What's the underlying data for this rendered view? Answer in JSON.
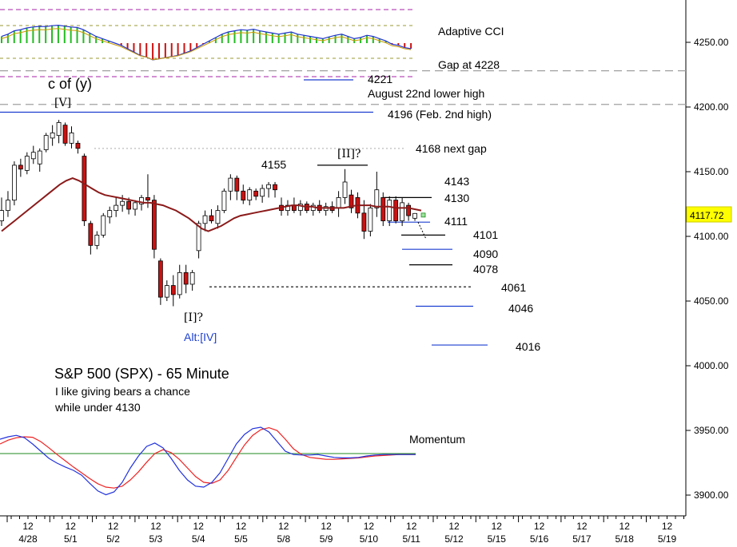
{
  "chart_data": {
    "type": "candlestick",
    "title": "S&P 500 (SPX) - 65 Minute",
    "subtitle_lines": [
      "I like giving bears a chance",
      "while under 4130"
    ],
    "y_axis": {
      "range": [
        3890,
        4290
      ],
      "ticks": [
        "4250.00",
        "4200.00",
        "4150.00",
        "4100.00",
        "4050.00",
        "4000.00",
        "3950.00",
        "3900.00"
      ],
      "tick_values": [
        4250,
        4200,
        4150,
        4100,
        4050,
        4000,
        3950,
        3900
      ],
      "last_price": "4117.72",
      "last_price_value": 4117.72,
      "last_price_color": "#ffff00"
    },
    "x_axis": {
      "top_labels": [
        "12",
        "12",
        "12",
        "12",
        "12",
        "12",
        "12",
        "12",
        "12",
        "12",
        "12",
        "12",
        "12",
        "12",
        "12",
        "12"
      ],
      "dates": [
        "4/28",
        "5/1",
        "5/2",
        "5/3",
        "5/4",
        "5/5",
        "5/8",
        "5/9",
        "5/10",
        "5/11",
        "5/12",
        "5/15",
        "5/16",
        "5/17",
        "5/18",
        "5/19"
      ]
    },
    "candles": [
      {
        "o": 4112,
        "h": 4130,
        "l": 4108,
        "c": 4120
      },
      {
        "o": 4120,
        "h": 4135,
        "l": 4115,
        "c": 4128
      },
      {
        "o": 4128,
        "h": 4158,
        "l": 4124,
        "c": 4155
      },
      {
        "o": 4155,
        "h": 4160,
        "l": 4146,
        "c": 4152
      },
      {
        "o": 4151,
        "h": 4165,
        "l": 4148,
        "c": 4162
      },
      {
        "o": 4160,
        "h": 4170,
        "l": 4156,
        "c": 4165
      },
      {
        "o": 4156,
        "h": 4168,
        "l": 4150,
        "c": 4166
      },
      {
        "o": 4167,
        "h": 4180,
        "l": 4165,
        "c": 4178
      },
      {
        "o": 4176,
        "h": 4186,
        "l": 4170,
        "c": 4180
      },
      {
        "o": 4178,
        "h": 4190,
        "l": 4172,
        "c": 4188
      },
      {
        "o": 4186,
        "h": 4188,
        "l": 4170,
        "c": 4172
      },
      {
        "o": 4172,
        "h": 4185,
        "l": 4168,
        "c": 4180
      },
      {
        "o": 4172,
        "h": 4174,
        "l": 4164,
        "c": 4168
      },
      {
        "o": 4162,
        "h": 4164,
        "l": 4108,
        "c": 4112
      },
      {
        "o": 4110,
        "h": 4112,
        "l": 4086,
        "c": 4093
      },
      {
        "o": 4093,
        "h": 4104,
        "l": 4090,
        "c": 4101
      },
      {
        "o": 4101,
        "h": 4118,
        "l": 4099,
        "c": 4116
      },
      {
        "o": 4115,
        "h": 4123,
        "l": 4110,
        "c": 4120
      },
      {
        "o": 4120,
        "h": 4130,
        "l": 4115,
        "c": 4124
      },
      {
        "o": 4124,
        "h": 4132,
        "l": 4119,
        "c": 4127
      },
      {
        "o": 4127,
        "h": 4130,
        "l": 4117,
        "c": 4121
      },
      {
        "o": 4121,
        "h": 4128,
        "l": 4116,
        "c": 4126
      },
      {
        "o": 4125,
        "h": 4132,
        "l": 4120,
        "c": 4130
      },
      {
        "o": 4130,
        "h": 4148,
        "l": 4122,
        "c": 4128
      },
      {
        "o": 4128,
        "h": 4132,
        "l": 4083,
        "c": 4090
      },
      {
        "o": 4081,
        "h": 4083,
        "l": 4047,
        "c": 4053
      },
      {
        "o": 4053,
        "h": 4066,
        "l": 4050,
        "c": 4062
      },
      {
        "o": 4062,
        "h": 4070,
        "l": 4046,
        "c": 4055
      },
      {
        "o": 4055,
        "h": 4078,
        "l": 4052,
        "c": 4072
      },
      {
        "o": 4072,
        "h": 4078,
        "l": 4056,
        "c": 4063
      },
      {
        "o": 4063,
        "h": 4074,
        "l": 4058,
        "c": 4072
      },
      {
        "o": 4089,
        "h": 4112,
        "l": 4083,
        "c": 4110
      },
      {
        "o": 4110,
        "h": 4120,
        "l": 4104,
        "c": 4116
      },
      {
        "o": 4116,
        "h": 4121,
        "l": 4110,
        "c": 4112
      },
      {
        "o": 4110,
        "h": 4124,
        "l": 4106,
        "c": 4120
      },
      {
        "o": 4120,
        "h": 4137,
        "l": 4118,
        "c": 4135
      },
      {
        "o": 4135,
        "h": 4148,
        "l": 4128,
        "c": 4145
      },
      {
        "o": 4145,
        "h": 4147,
        "l": 4128,
        "c": 4135
      },
      {
        "o": 4135,
        "h": 4140,
        "l": 4125,
        "c": 4128
      },
      {
        "o": 4128,
        "h": 4138,
        "l": 4124,
        "c": 4136
      },
      {
        "o": 4135,
        "h": 4137,
        "l": 4128,
        "c": 4131
      },
      {
        "o": 4131,
        "h": 4140,
        "l": 4126,
        "c": 4137
      },
      {
        "o": 4137,
        "h": 4142,
        "l": 4130,
        "c": 4140
      },
      {
        "o": 4140,
        "h": 4142,
        "l": 4130,
        "c": 4136
      },
      {
        "o": 4124,
        "h": 4130,
        "l": 4116,
        "c": 4120
      },
      {
        "o": 4120,
        "h": 4128,
        "l": 4116,
        "c": 4124
      },
      {
        "o": 4124,
        "h": 4130,
        "l": 4118,
        "c": 4120
      },
      {
        "o": 4120,
        "h": 4128,
        "l": 4116,
        "c": 4125
      },
      {
        "o": 4125,
        "h": 4127,
        "l": 4118,
        "c": 4120
      },
      {
        "o": 4120,
        "h": 4126,
        "l": 4116,
        "c": 4124
      },
      {
        "o": 4124,
        "h": 4128,
        "l": 4118,
        "c": 4120
      },
      {
        "o": 4120,
        "h": 4126,
        "l": 4116,
        "c": 4123
      },
      {
        "o": 4123,
        "h": 4127,
        "l": 4118,
        "c": 4120
      },
      {
        "o": 4122,
        "h": 4135,
        "l": 4115,
        "c": 4130
      },
      {
        "o": 4130,
        "h": 4152,
        "l": 4125,
        "c": 4142
      },
      {
        "o": 4132,
        "h": 4136,
        "l": 4118,
        "c": 4122
      },
      {
        "o": 4130,
        "h": 4134,
        "l": 4114,
        "c": 4118
      },
      {
        "o": 4118,
        "h": 4128,
        "l": 4098,
        "c": 4104
      },
      {
        "o": 4104,
        "h": 4125,
        "l": 4100,
        "c": 4122
      },
      {
        "o": 4122,
        "h": 4150,
        "l": 4115,
        "c": 4136
      },
      {
        "o": 4130,
        "h": 4134,
        "l": 4108,
        "c": 4112
      },
      {
        "o": 4112,
        "h": 4131,
        "l": 4108,
        "c": 4128
      },
      {
        "o": 4128,
        "h": 4131,
        "l": 4110,
        "c": 4112
      },
      {
        "o": 4112,
        "h": 4130,
        "l": 4108,
        "c": 4126
      },
      {
        "o": 4124,
        "h": 4126,
        "l": 4112,
        "c": 4116
      },
      {
        "o": 4114,
        "h": 4118,
        "l": 4112,
        "c": 4117.72
      }
    ],
    "moving_average_color": "#8b1a1a",
    "moving_average": [
      4104,
      4108,
      4112,
      4116,
      4120,
      4124,
      4128,
      4132,
      4136,
      4140,
      4143,
      4145,
      4143,
      4140,
      4137,
      4134,
      4132,
      4131,
      4130,
      4129,
      4128,
      4127,
      4126,
      4126,
      4125,
      4124,
      4122,
      4120,
      4117,
      4114,
      4110,
      4106,
      4104,
      4106,
      4108,
      4111,
      4114,
      4116,
      4117,
      4118,
      4119,
      4120,
      4121,
      4122,
      4123,
      4124,
      4124,
      4123,
      4123,
      4122,
      4122,
      4122,
      4122,
      4122,
      4123,
      4124,
      4124,
      4124,
      4123,
      4123,
      4123,
      4122,
      4122,
      4122,
      4121,
      4120
    ],
    "levels": [
      {
        "label": "4221",
        "value": 4221,
        "color": "#1c3fd1",
        "style": "solid",
        "x1": 380,
        "x2": 442
      },
      {
        "label": "August 22nd lower high",
        "value": 4212,
        "color": "#000000",
        "style": "none"
      },
      {
        "label": "4196 (Feb. 2nd high)",
        "value": 4196,
        "color": "#1c3fd1",
        "style": "solid",
        "x1": 0,
        "x2": 467
      },
      {
        "label": "4168 next gap",
        "value": 4168,
        "color": "#bbbbbb",
        "style": "dotted",
        "x1": 118,
        "x2": 505
      },
      {
        "label": "4143",
        "value": 4143,
        "color": "#000000",
        "style": "none"
      },
      {
        "label": "4130",
        "value": 4130,
        "color": "#000000",
        "style": "solid",
        "x1": 480,
        "x2": 540
      },
      {
        "label": "4111",
        "value": 4111,
        "color": "#1c3fd1",
        "style": "solid",
        "x1": 485,
        "x2": 538
      },
      {
        "label": "4101",
        "value": 4101,
        "color": "#000000",
        "style": "solid",
        "x1": 502,
        "x2": 557
      },
      {
        "label": "4090",
        "value": 4090,
        "color": "#1c3fd1",
        "style": "solid",
        "x1": 503,
        "x2": 566
      },
      {
        "label": "4078",
        "value": 4078,
        "color": "#000000",
        "style": "solid",
        "x1": 512,
        "x2": 566
      },
      {
        "label": "4061",
        "value": 4061,
        "color": "#000000",
        "style": "dashed",
        "x1": 262,
        "x2": 592
      },
      {
        "label": "4046",
        "value": 4046,
        "color": "#1c3fd1",
        "style": "solid",
        "x1": 520,
        "x2": 592
      },
      {
        "label": "4016",
        "value": 4016,
        "color": "#1c3fd1",
        "style": "solid",
        "x1": 540,
        "x2": 610
      }
    ],
    "gap_lines": [
      {
        "label": "Gap at 4228",
        "value": 4228
      },
      {
        "value": 4202
      }
    ],
    "wave_labels": [
      "c of (y)",
      "[V]",
      "[I]?",
      "Alt:[IV]",
      "4155",
      "[II]?"
    ],
    "cci": {
      "label": "Adaptive CCI",
      "bar_colors": {
        "up": "#22bb22",
        "down": "#cc1111",
        "neutral": "#cccc00"
      },
      "values": [
        30,
        40,
        55,
        60,
        68,
        72,
        75,
        74,
        78,
        80,
        76,
        72,
        70,
        60,
        45,
        30,
        20,
        10,
        0,
        -10,
        -25,
        -40,
        -55,
        -62,
        -75,
        -70,
        -65,
        -60,
        -55,
        -45,
        -35,
        -20,
        -5,
        10,
        25,
        40,
        50,
        55,
        60,
        58,
        62,
        55,
        50,
        45,
        40,
        45,
        50,
        40,
        35,
        30,
        25,
        20,
        28,
        35,
        40,
        30,
        20,
        25,
        35,
        30,
        20,
        10,
        -5,
        -10,
        -20,
        -25
      ]
    },
    "momentum": {
      "label": "Momentum",
      "blue": [
        30,
        35,
        38,
        33,
        20,
        5,
        -10,
        -20,
        -28,
        -35,
        -45,
        -62,
        -78,
        -86,
        -80,
        -60,
        -30,
        -5,
        15,
        22,
        12,
        -10,
        -35,
        -55,
        -68,
        -70,
        -60,
        -40,
        -10,
        20,
        40,
        52,
        55,
        45,
        25,
        5,
        -2,
        -3,
        -3,
        -2,
        -5,
        -8,
        -9,
        -9,
        -8,
        -5,
        -3,
        -2,
        -2,
        -2,
        -2,
        -2
      ],
      "red": [
        20,
        28,
        33,
        35,
        34,
        25,
        12,
        -2,
        -15,
        -28,
        -40,
        -52,
        -63,
        -70,
        -72,
        -68,
        -55,
        -38,
        -18,
        0,
        8,
        2,
        -12,
        -30,
        -48,
        -60,
        -62,
        -55,
        -35,
        -8,
        18,
        38,
        50,
        54,
        48,
        30,
        10,
        -2,
        -8,
        -10,
        -12,
        -12,
        -11,
        -10,
        -9,
        -7,
        -5,
        -4,
        -3,
        -2,
        -2,
        -2
      ]
    }
  }
}
